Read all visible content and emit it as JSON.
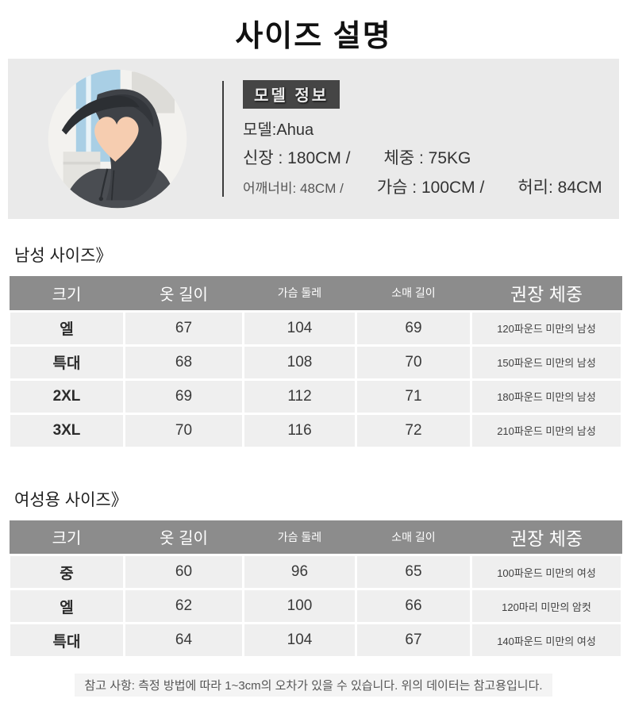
{
  "page": {
    "title": "사이즈 설명",
    "footer_note": "참고 사항: 측정 방법에 따라 1~3cm의 오차가 있을 수 있습니다. 위의 데이터는 참고용입니다."
  },
  "model": {
    "badge": "모델 정보",
    "name": "모델:Ahua",
    "row1": [
      "신장 : 180CM /",
      "체중 : 75KG"
    ],
    "row2": [
      "어깨너비: 48CM /",
      "가슴 : 100CM /",
      "허리: 84CM"
    ],
    "photo_icon": "hooded-model-photo",
    "face_icon": "heart-face-icon"
  },
  "men": {
    "heading": "남성 사이즈》",
    "headers": [
      "크기",
      "옷 길이",
      "가슴 둘레",
      "소매 길이",
      "권장 체중"
    ],
    "rows": [
      [
        "엘",
        "67",
        "104",
        "69",
        "120파운드 미만의 남성"
      ],
      [
        "특대",
        "68",
        "108",
        "70",
        "150파운드 미만의 남성"
      ],
      [
        "2XL",
        "69",
        "112",
        "71",
        "180파운드 미만의 남성"
      ],
      [
        "3XL",
        "70",
        "116",
        "72",
        "210파운드 미만의 남성"
      ]
    ]
  },
  "women": {
    "heading": "여성용 사이즈》",
    "headers": [
      "크기",
      "옷 길이",
      "가슴 둘레",
      "소매 길이",
      "권장 체중"
    ],
    "rows": [
      [
        "중",
        "60",
        "96",
        "65",
        "100파운드 미만의 여성"
      ],
      [
        "엘",
        "62",
        "100",
        "66",
        "120마리 미만의 암컷"
      ],
      [
        "특대",
        "64",
        "104",
        "67",
        "140파운드 미만의 여성"
      ]
    ]
  },
  "colors": {
    "banner_bg": "#eaeaea",
    "table_header_bg": "#8c8c8c",
    "table_row_bg": "#efefef",
    "badge_bg": "#454545",
    "heart": "#f6cdb0",
    "jacket": "#3f4247"
  }
}
